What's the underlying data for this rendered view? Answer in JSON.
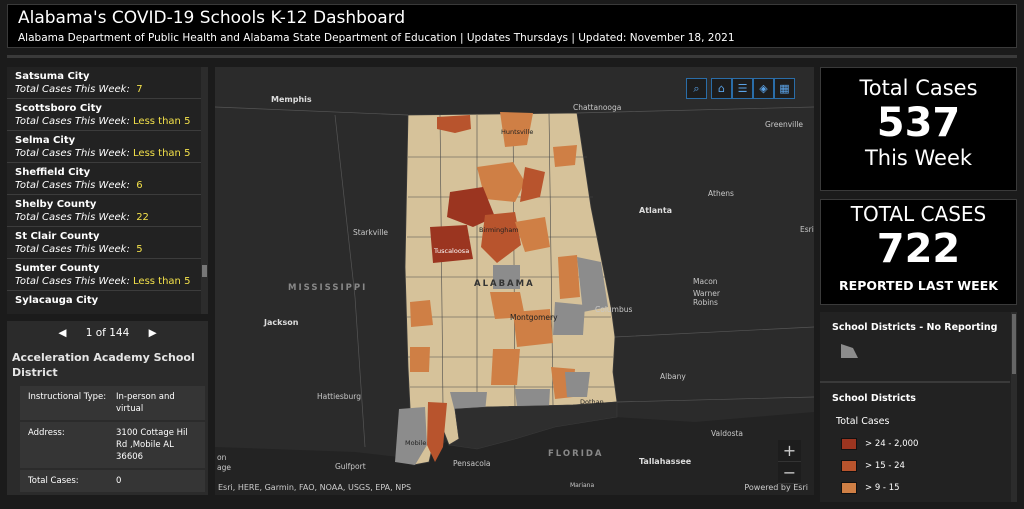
{
  "header": {
    "title": "Alabama's COVID-19 Schools K-12 Dashboard",
    "subtitle": "Alabama Department of Public Health and Alabama State Department of Education | Updates Thursdays | Updated: November 18, 2021"
  },
  "list": {
    "items": [
      {
        "name": "Satsuma City",
        "label": "Total Cases This Week:",
        "value": "7"
      },
      {
        "name": "Scottsboro City",
        "label": "Total Cases This Week:",
        "value": "Less than 5"
      },
      {
        "name": "Selma City",
        "label": "Total Cases This Week:",
        "value": "Less than 5"
      },
      {
        "name": "Sheffield City",
        "label": "Total Cases This Week:",
        "value": "6"
      },
      {
        "name": "Shelby County",
        "label": "Total Cases This Week:",
        "value": "22"
      },
      {
        "name": "St Clair County",
        "label": "Total Cases This Week:",
        "value": "5"
      },
      {
        "name": "Sumter County",
        "label": "Total Cases This Week:",
        "value": "Less than 5"
      },
      {
        "name": "Sylacauga City",
        "label": "",
        "value": ""
      }
    ]
  },
  "popup": {
    "prev_icon": "triangle-left-icon",
    "pager": "1 of 144",
    "next_icon": "triangle-right-icon",
    "title": "Acceleration Academy School District",
    "rows": [
      {
        "key": "Instructional Type:",
        "value": "In-person and virtual"
      },
      {
        "key": "Address:",
        "value": "3100 Cottage Hil Rd ,Mobile AL 36606"
      },
      {
        "key": "Total Cases:",
        "value": "0"
      }
    ]
  },
  "map": {
    "toolbar": {
      "search": "search-icon",
      "home": "home-icon",
      "list": "list-icon",
      "layers": "layers-icon",
      "basemap": "basemap-gallery-icon"
    },
    "labels": {
      "memphis": "Memphis",
      "chattanooga": "Chattanooga",
      "greenville": "Greenville",
      "athens": "Athens",
      "atlanta": "Atlanta",
      "starkville": "Starkville",
      "mississippi": "MISSISSIPPI",
      "jackson": "Jackson",
      "macon": "Macon",
      "warner_robins": "Warner\nRobins",
      "columbus": "Columbus",
      "hattiesburg": "Hattiesburg",
      "albany": "Albany",
      "valdosta": "Valdosta",
      "florida": "FLORIDA",
      "tallahassee": "Tallahassee",
      "gulfport": "Gulfport",
      "pensacola": "Pensacola",
      "alabama": "ALABAMA",
      "montgomery": "Montgomery",
      "birmingham": "Birmingham",
      "tuscaloosa": "Tuscaloosa",
      "huntsville": "Huntsville",
      "mobile": "Mobile",
      "dothan": "Dothan",
      "on": "on",
      "age": "age",
      "esri": "Esri",
      "mariana": "Mariana"
    },
    "zoom_in": "+",
    "zoom_out": "−",
    "attribution": "Esri, HERE, Garmin, FAO, NOAA, USGS, EPA, NPS",
    "powered_by": "Powered by Esri"
  },
  "cards": {
    "week_title": "Total Cases",
    "week_value": "537",
    "week_bottom": "This Week",
    "last_title": "TOTAL CASES",
    "last_value": "722",
    "last_bottom": "REPORTED LAST WEEK"
  },
  "legend": {
    "no_reporting_title": "School Districts - No Reporting",
    "no_reporting_color": "#8c8c8c",
    "districts_title": "School Districts",
    "field": "Total Cases",
    "classes": [
      {
        "label": "> 24 - 2,000",
        "color": "#9b3520"
      },
      {
        "label": "> 15 - 24",
        "color": "#b8542d"
      },
      {
        "label": "> 9 - 15",
        "color": "#cf7f45"
      }
    ]
  }
}
